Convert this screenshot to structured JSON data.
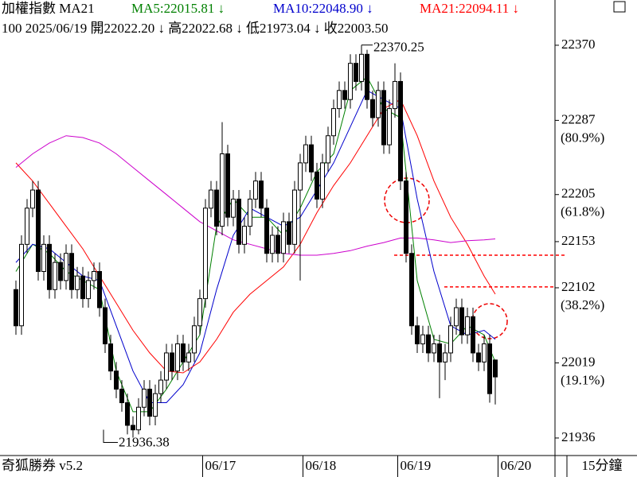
{
  "chart_data": {
    "type": "candlestick",
    "header": {
      "symbol": "加權指數 MA21",
      "bar_info": "100 2025/06/19 開22022.20 ↓ 高22022.68 ↓ 低21973.04 ↓ 收22003.50"
    },
    "footer": {
      "app": "奇狐勝券 v5.2",
      "period": "15分鐘"
    },
    "categories": [
      null,
      null,
      null,
      null,
      null,
      null,
      null,
      null,
      null,
      null,
      null,
      null,
      null,
      null,
      null,
      null,
      null,
      null,
      null,
      null,
      null,
      null,
      null,
      null,
      null,
      null,
      null,
      null,
      null,
      null,
      null,
      null,
      null,
      null,
      "06/17",
      null,
      null,
      null,
      null,
      null,
      null,
      null,
      null,
      null,
      null,
      null,
      null,
      null,
      null,
      null,
      null,
      null,
      "06/18",
      null,
      null,
      null,
      null,
      null,
      null,
      null,
      null,
      null,
      null,
      null,
      null,
      null,
      null,
      null,
      null,
      "06/19",
      null,
      null,
      null,
      null,
      null,
      null,
      null,
      null,
      null,
      null,
      null,
      null,
      null,
      null,
      null,
      null,
      null,
      "06/20"
    ],
    "open": [
      22100,
      22060,
      22150,
      22190,
      22210,
      22120,
      22150,
      22100,
      22130,
      22110,
      22140,
      22100,
      22115,
      22090,
      22110,
      22120,
      22080,
      22040,
      22010,
      21990,
      21975,
      21950,
      21945,
      21970,
      21990,
      21960,
      21985,
      22000,
      22030,
      22010,
      22040,
      22020,
      22030,
      22060,
      22090,
      22190,
      22210,
      22170,
      22250,
      22180,
      22200,
      22150,
      22170,
      22200,
      22220,
      22190,
      22140,
      22160,
      22140,
      22175,
      22150,
      22210,
      22240,
      22260,
      22230,
      22200,
      22240,
      22270,
      22300,
      22320,
      22310,
      22350,
      22330,
      22360,
      22310,
      22290,
      22320,
      22260,
      22300,
      22330,
      22220,
      22140,
      22060,
      22040,
      22050,
      22030,
      22040,
      22020,
      22030,
      22060,
      22080,
      22050,
      22070,
      22030,
      22020,
      22040,
      22022.2,
      null
    ],
    "high": [
      22110,
      22160,
      22200,
      22220,
      22220,
      22160,
      22160,
      22140,
      22140,
      22150,
      22150,
      22125,
      22125,
      22120,
      22130,
      22130,
      22090,
      22050,
      22020,
      22000,
      21985,
      21960,
      21980,
      22000,
      22000,
      21995,
      22010,
      22040,
      22040,
      22050,
      22050,
      22040,
      22070,
      22100,
      22200,
      22220,
      22220,
      22285,
      22260,
      22210,
      22210,
      22180,
      22210,
      22230,
      22230,
      22200,
      22170,
      22170,
      22185,
      22185,
      22220,
      22250,
      22270,
      22270,
      22240,
      22250,
      22280,
      22310,
      22330,
      22330,
      22360,
      22360,
      22370.25,
      22365,
      22320,
      22330,
      22330,
      22310,
      22350,
      22340,
      22230,
      22150,
      22070,
      22060,
      22060,
      22050,
      22050,
      22040,
      22070,
      22090,
      22090,
      22080,
      22080,
      22040,
      22050,
      22050,
      22022.68,
      null
    ],
    "low": [
      22050,
      22050,
      22140,
      22180,
      22110,
      22110,
      22090,
      22090,
      22100,
      22100,
      22090,
      22090,
      22080,
      22080,
      22100,
      22070,
      22030,
      22000,
      21980,
      21965,
      21940,
      21936.38,
      21940,
      21960,
      21950,
      21950,
      21975,
      21990,
      22000,
      22000,
      22010,
      22010,
      22020,
      22050,
      22080,
      22180,
      22160,
      22160,
      22170,
      22170,
      22140,
      22140,
      22160,
      22190,
      22180,
      22130,
      22130,
      22130,
      22130,
      22140,
      22140,
      22110,
      22230,
      22220,
      22190,
      22190,
      22230,
      22260,
      22290,
      22300,
      22300,
      22320,
      22320,
      22300,
      22280,
      22280,
      22250,
      22250,
      22290,
      22210,
      22130,
      22050,
      22030,
      22030,
      22020,
      22020,
      21980,
      22000,
      22020,
      22050,
      22040,
      22040,
      22020,
      22010,
      22010,
      21975,
      21973.04,
      null
    ],
    "close": [
      22060,
      22150,
      22190,
      22210,
      22120,
      22150,
      22100,
      22130,
      22110,
      22140,
      22100,
      22115,
      22090,
      22110,
      22120,
      22080,
      22040,
      22010,
      21990,
      21975,
      21950,
      21945,
      21970,
      21990,
      21960,
      21985,
      22000,
      22030,
      22010,
      22040,
      22020,
      22030,
      22060,
      22090,
      22190,
      22210,
      22170,
      22250,
      22180,
      22200,
      22150,
      22170,
      22200,
      22220,
      22190,
      22140,
      22160,
      22140,
      22175,
      22150,
      22210,
      22240,
      22260,
      22230,
      22200,
      22240,
      22270,
      22300,
      22320,
      22310,
      22350,
      22330,
      22360,
      22310,
      22290,
      22320,
      22260,
      22300,
      22330,
      22220,
      22140,
      22060,
      22040,
      22050,
      22030,
      22040,
      22020,
      22030,
      22060,
      22080,
      22050,
      22070,
      22030,
      22020,
      22040,
      21985,
      22003.5,
      null
    ],
    "up_color": "#ffffff",
    "down_color": "#000000",
    "series": [
      {
        "label": "MA5:22015.81 ↓",
        "color": "#008000",
        "x": [
          0,
          3,
          6,
          9,
          12,
          15,
          18,
          21,
          24,
          27,
          30,
          33,
          36,
          39,
          42,
          45,
          48,
          51,
          54,
          57,
          60,
          63,
          66,
          69,
          72,
          75,
          78,
          81,
          84,
          86
        ],
        "values": [
          22120,
          22150,
          22140,
          22120,
          22110,
          22100,
          22010,
          21965,
          21965,
          21990,
          22020,
          22050,
          22170,
          22200,
          22180,
          22180,
          22160,
          22190,
          22230,
          22250,
          22320,
          22335,
          22300,
          22290,
          22110,
          22045,
          22040,
          22060,
          22050,
          22020
        ]
      },
      {
        "label": "MA10:22048.90 ↓",
        "color": "#0000cc",
        "x": [
          0,
          3,
          6,
          9,
          12,
          15,
          18,
          21,
          24,
          27,
          30,
          33,
          36,
          39,
          42,
          45,
          48,
          51,
          54,
          57,
          60,
          63,
          66,
          69,
          72,
          75,
          78,
          81,
          84,
          86
        ],
        "values": [
          22130,
          22150,
          22145,
          22130,
          22115,
          22110,
          22060,
          22010,
          21975,
          21975,
          21995,
          22030,
          22100,
          22160,
          22190,
          22180,
          22170,
          22180,
          22210,
          22240,
          22280,
          22320,
          22310,
          22300,
          22200,
          22120,
          22060,
          22050,
          22055,
          22045
        ]
      },
      {
        "label": "MA21:22094.11 ↓",
        "color": "#ff0000",
        "x": [
          0,
          3,
          6,
          9,
          12,
          15,
          18,
          21,
          24,
          27,
          30,
          33,
          36,
          39,
          42,
          45,
          48,
          51,
          54,
          57,
          60,
          63,
          66,
          69,
          72,
          75,
          78,
          81,
          84,
          86
        ],
        "values": [
          22240,
          22220,
          22195,
          22170,
          22145,
          22115,
          22085,
          22055,
          22030,
          22010,
          22008,
          22020,
          22045,
          22075,
          22095,
          22110,
          22125,
          22150,
          22185,
          22215,
          22240,
          22270,
          22300,
          22310,
          22270,
          22220,
          22180,
          22150,
          22115,
          22095
        ]
      },
      {
        "color": "#cc00cc",
        "x": [
          0,
          3,
          6,
          9,
          12,
          15,
          18,
          21,
          24,
          27,
          30,
          33,
          36,
          39,
          42,
          45,
          48,
          51,
          54,
          57,
          60,
          63,
          66,
          69,
          72,
          75,
          78,
          81,
          84,
          86
        ],
        "values": [
          22235,
          22250,
          22262,
          22270,
          22268,
          22262,
          22250,
          22235,
          22220,
          22205,
          22190,
          22175,
          22165,
          22155,
          22150,
          22145,
          22140,
          22138,
          22138,
          22140,
          22143,
          22148,
          22152,
          22157,
          22157,
          22155,
          22152,
          22154,
          22155,
          22156
        ]
      }
    ],
    "ylim": [
      21917.5,
      22420
    ],
    "yticks": [
      22370,
      22287,
      22205,
      22153,
      22102,
      22019,
      21936
    ],
    "fib_levels": [
      {
        "value": 22287,
        "label": "(80.9%)"
      },
      {
        "value": 22205,
        "label": "(61.8%)"
      },
      {
        "value": 22102,
        "label": "(38.2%)"
      },
      {
        "value": 22019,
        "label": "(19.1%)"
      }
    ],
    "reference_lines": [
      {
        "value": 22138,
        "color": "#ff0000"
      },
      {
        "value": 22103,
        "color": "#ff0000"
      }
    ]
  }
}
